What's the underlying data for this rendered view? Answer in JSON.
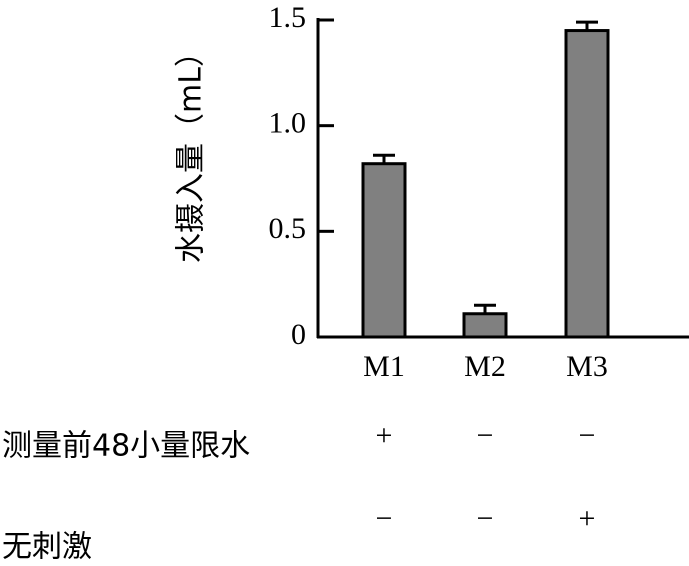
{
  "chart_data": {
    "type": "bar",
    "y_label": "水摄入量（mL）",
    "categories": [
      "M1",
      "M2",
      "M3"
    ],
    "values": [
      0.82,
      0.11,
      1.45
    ],
    "errors": [
      0.04,
      0.04,
      0.04
    ],
    "color": "#808080",
    "ylim": [
      0,
      1.5
    ],
    "yticks": [
      0,
      0.5,
      {
        "value": 1,
        "label": "1.0"
      },
      1.5
    ],
    "conditions": [
      {
        "label": "测量前48小量限水",
        "marks": [
          "+",
          "−",
          "−"
        ]
      },
      {
        "label": "无刺激",
        "marks": [
          "−",
          "−",
          "+"
        ]
      }
    ]
  }
}
